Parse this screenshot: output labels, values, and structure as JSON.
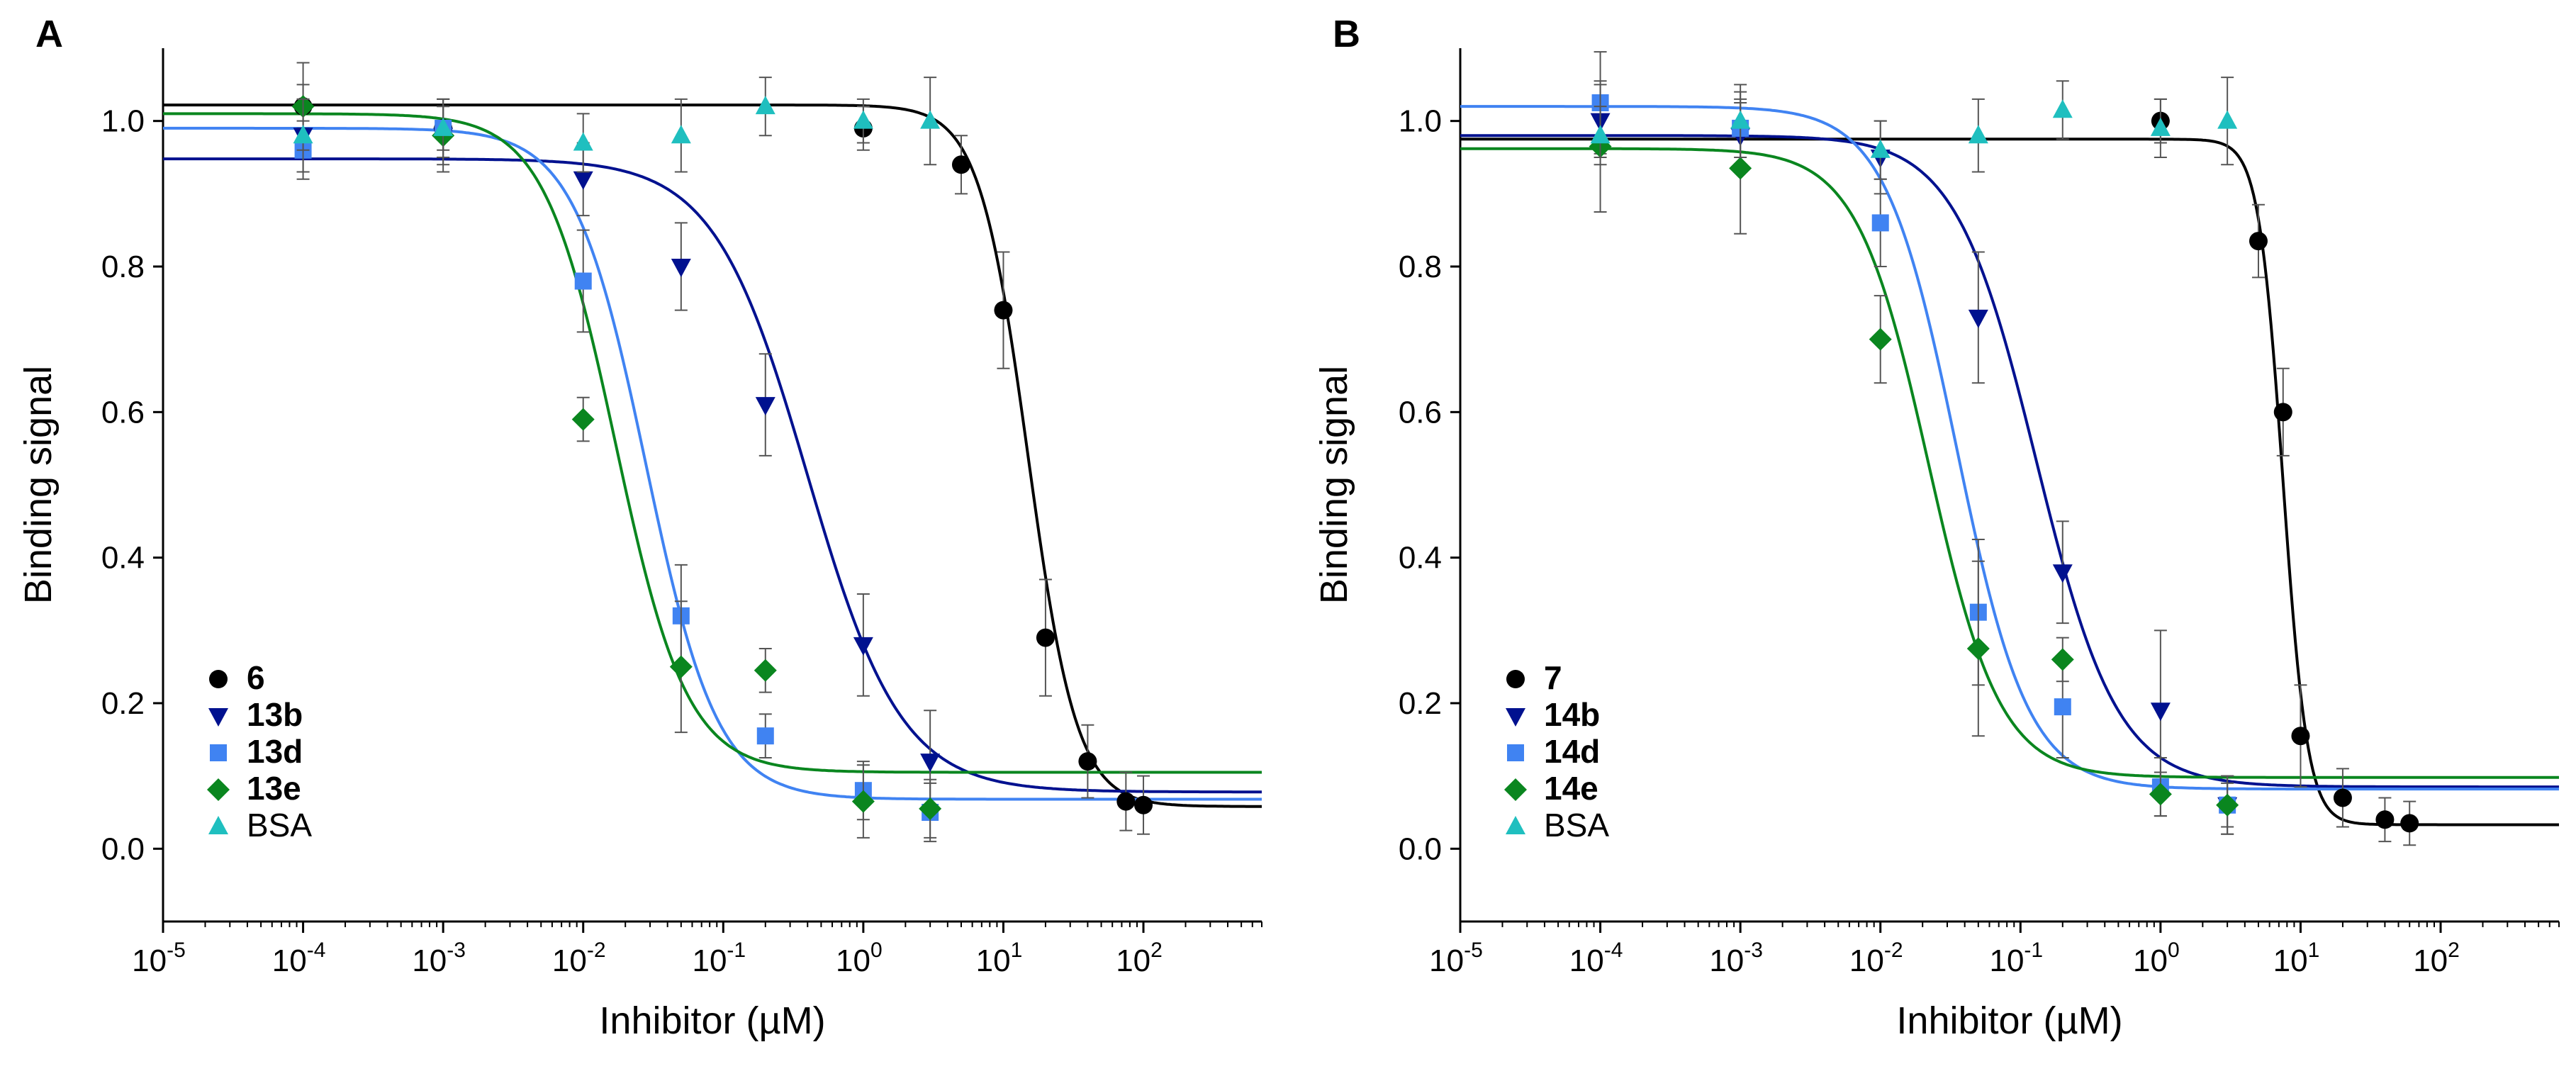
{
  "chart_data": [
    {
      "type": "scatter",
      "panel_label": "A",
      "xlabel": "Inhibitor (µM)",
      "ylabel": "Binding signal",
      "xscale": "log",
      "xlim": [
        1e-05,
        700
      ],
      "ylim": [
        -0.1,
        1.1
      ],
      "x_ticks": [
        {
          "base": "10",
          "exp": "-5",
          "value": 1e-05
        },
        {
          "base": "10",
          "exp": "-4",
          "value": 0.0001
        },
        {
          "base": "10",
          "exp": "-3",
          "value": 0.001
        },
        {
          "base": "10",
          "exp": "-2",
          "value": 0.01
        },
        {
          "base": "10",
          "exp": "-1",
          "value": 0.1
        },
        {
          "base": "10",
          "exp": "0",
          "value": 1
        },
        {
          "base": "10",
          "exp": "1",
          "value": 10
        },
        {
          "base": "10",
          "exp": "2",
          "value": 100
        }
      ],
      "y_ticks": [
        "0.0",
        "0.2",
        "0.4",
        "0.6",
        "0.8",
        "1.0"
      ],
      "grid": false,
      "legend_position": "bottom-left",
      "series": [
        {
          "name": "6",
          "bold": true,
          "marker": "circle",
          "color": "#000000",
          "fit": {
            "bottom": 0.058,
            "top": 1.022,
            "ic50": 15.0,
            "hill": 2.5
          },
          "points": [
            {
              "x": 0.0001,
              "y": 1.02,
              "err": 0.03
            },
            {
              "x": 0.001,
              "y": 0.99,
              "err": 0.03
            },
            {
              "x": 1,
              "y": 0.99,
              "err": 0.03
            },
            {
              "x": 5,
              "y": 0.94,
              "err": 0.04
            },
            {
              "x": 10,
              "y": 0.74,
              "err": 0.08
            },
            {
              "x": 20,
              "y": 0.29,
              "err": 0.08
            },
            {
              "x": 40,
              "y": 0.12,
              "err": 0.05
            },
            {
              "x": 75,
              "y": 0.065,
              "err": 0.04
            },
            {
              "x": 100,
              "y": 0.06,
              "err": 0.04
            }
          ]
        },
        {
          "name": "13b",
          "bold": true,
          "marker": "triangle-down",
          "color": "#00118f",
          "fit": {
            "bottom": 0.078,
            "top": 0.948,
            "ic50": 0.4,
            "hill": 1.3
          },
          "points": [
            {
              "x": 0.0001,
              "y": 0.98,
              "err": 0.05
            },
            {
              "x": 0.001,
              "y": 0.98,
              "err": 0.05
            },
            {
              "x": 0.01,
              "y": 0.92,
              "err": 0.05
            },
            {
              "x": 0.05,
              "y": 0.8,
              "err": 0.06
            },
            {
              "x": 0.2,
              "y": 0.61,
              "err": 0.07
            },
            {
              "x": 1,
              "y": 0.28,
              "err": 0.07
            },
            {
              "x": 3,
              "y": 0.12,
              "err": 0.07
            }
          ]
        },
        {
          "name": "13d",
          "bold": true,
          "marker": "square",
          "color": "#4083f2",
          "fit": {
            "bottom": 0.068,
            "top": 0.99,
            "ic50": 0.028,
            "hill": 1.7
          },
          "points": [
            {
              "x": 0.0001,
              "y": 0.96,
              "err": 0.04
            },
            {
              "x": 0.001,
              "y": 0.99,
              "err": 0.04
            },
            {
              "x": 0.01,
              "y": 0.78,
              "err": 0.07
            },
            {
              "x": 0.05,
              "y": 0.32,
              "err": 0.07
            },
            {
              "x": 0.2,
              "y": 0.155,
              "err": 0.03
            },
            {
              "x": 1,
              "y": 0.08,
              "err": 0.04
            },
            {
              "x": 3,
              "y": 0.05,
              "err": 0.04
            }
          ]
        },
        {
          "name": "13e",
          "bold": true,
          "marker": "diamond",
          "color": "#0a861f",
          "fit": {
            "bottom": 0.105,
            "top": 1.01,
            "ic50": 0.017,
            "hill": 1.7
          },
          "points": [
            {
              "x": 0.0001,
              "y": 1.02,
              "err": 0.06
            },
            {
              "x": 0.001,
              "y": 0.98,
              "err": 0.04
            },
            {
              "x": 0.01,
              "y": 0.59,
              "err": 0.03
            },
            {
              "x": 0.05,
              "y": 0.25,
              "err": 0.09
            },
            {
              "x": 0.2,
              "y": 0.245,
              "err": 0.03
            },
            {
              "x": 1,
              "y": 0.065,
              "err": 0.05
            },
            {
              "x": 3,
              "y": 0.055,
              "err": 0.04
            }
          ]
        },
        {
          "name": "BSA",
          "bold": false,
          "marker": "triangle-up",
          "color": "#1fbfbf",
          "fit": null,
          "points": [
            {
              "x": 0.0001,
              "y": 0.98,
              "err": 0.05
            },
            {
              "x": 0.001,
              "y": 0.99,
              "err": 0.04
            },
            {
              "x": 0.01,
              "y": 0.97,
              "err": 0.04
            },
            {
              "x": 0.05,
              "y": 0.98,
              "err": 0.05
            },
            {
              "x": 0.2,
              "y": 1.02,
              "err": 0.04
            },
            {
              "x": 1,
              "y": 1.0,
              "err": 0.03
            },
            {
              "x": 3,
              "y": 1.0,
              "err": 0.06
            }
          ]
        }
      ]
    },
    {
      "type": "scatter",
      "panel_label": "B",
      "xlabel": "Inhibitor (µM)",
      "ylabel": "Binding signal",
      "xscale": "log",
      "xlim": [
        1e-05,
        700
      ],
      "ylim": [
        -0.1,
        1.1
      ],
      "x_ticks": [
        {
          "base": "10",
          "exp": "-5",
          "value": 1e-05
        },
        {
          "base": "10",
          "exp": "-4",
          "value": 0.0001
        },
        {
          "base": "10",
          "exp": "-3",
          "value": 0.001
        },
        {
          "base": "10",
          "exp": "-2",
          "value": 0.01
        },
        {
          "base": "10",
          "exp": "-1",
          "value": 0.1
        },
        {
          "base": "10",
          "exp": "0",
          "value": 1
        },
        {
          "base": "10",
          "exp": "1",
          "value": 10
        },
        {
          "base": "10",
          "exp": "2",
          "value": 100
        }
      ],
      "y_ticks": [
        "0.0",
        "0.2",
        "0.4",
        "0.6",
        "0.8",
        "1.0"
      ],
      "grid": false,
      "legend_position": "bottom-left",
      "series": [
        {
          "name": "7",
          "bold": true,
          "marker": "circle",
          "color": "#000000",
          "fit": {
            "bottom": 0.033,
            "top": 0.975,
            "ic50": 7.5,
            "hill": 5.0
          },
          "points": [
            {
              "x": 1,
              "y": 1.0,
              "err": 0.03
            },
            {
              "x": 5,
              "y": 0.835,
              "err": 0.05
            },
            {
              "x": 7.5,
              "y": 0.6,
              "err": 0.06
            },
            {
              "x": 10,
              "y": 0.155,
              "err": 0.07
            },
            {
              "x": 20,
              "y": 0.07,
              "err": 0.04
            },
            {
              "x": 40,
              "y": 0.04,
              "err": 0.03
            },
            {
              "x": 60,
              "y": 0.035,
              "err": 0.03
            }
          ]
        },
        {
          "name": "14b",
          "bold": true,
          "marker": "triangle-down",
          "color": "#00118f",
          "fit": {
            "bottom": 0.085,
            "top": 0.98,
            "ic50": 0.13,
            "hill": 1.5
          },
          "points": [
            {
              "x": 0.0001,
              "y": 1.0,
              "err": 0.05
            },
            {
              "x": 0.001,
              "y": 0.98,
              "err": 0.05
            },
            {
              "x": 0.01,
              "y": 0.95,
              "err": 0.05
            },
            {
              "x": 0.05,
              "y": 0.73,
              "err": 0.09
            },
            {
              "x": 0.2,
              "y": 0.38,
              "err": 0.07
            },
            {
              "x": 1,
              "y": 0.19,
              "err": 0.11
            },
            {
              "x": 3,
              "y": 0.06,
              "err": 0.04
            }
          ]
        },
        {
          "name": "14d",
          "bold": true,
          "marker": "square",
          "color": "#4083f2",
          "fit": {
            "bottom": 0.082,
            "top": 1.02,
            "ic50": 0.035,
            "hill": 1.7
          },
          "points": [
            {
              "x": 0.0001,
              "y": 1.025,
              "err": 0.07
            },
            {
              "x": 0.001,
              "y": 0.99,
              "err": 0.05
            },
            {
              "x": 0.01,
              "y": 0.86,
              "err": 0.06
            },
            {
              "x": 0.05,
              "y": 0.325,
              "err": 0.1
            },
            {
              "x": 0.2,
              "y": 0.195,
              "err": 0.07
            },
            {
              "x": 1,
              "y": 0.085,
              "err": 0.04
            },
            {
              "x": 3,
              "y": 0.06,
              "err": 0.03
            }
          ]
        },
        {
          "name": "14e",
          "bold": true,
          "marker": "diamond",
          "color": "#0a861f",
          "fit": {
            "bottom": 0.098,
            "top": 0.962,
            "ic50": 0.022,
            "hill": 1.7
          },
          "points": [
            {
              "x": 0.0001,
              "y": 0.965,
              "err": 0.09
            },
            {
              "x": 0.001,
              "y": 0.935,
              "err": 0.09
            },
            {
              "x": 0.01,
              "y": 0.7,
              "err": 0.06
            },
            {
              "x": 0.05,
              "y": 0.275,
              "err": 0.12
            },
            {
              "x": 0.2,
              "y": 0.26,
              "err": 0.03
            },
            {
              "x": 1,
              "y": 0.075,
              "err": 0.03
            },
            {
              "x": 3,
              "y": 0.06,
              "err": 0.04
            }
          ]
        },
        {
          "name": "BSA",
          "bold": false,
          "marker": "triangle-up",
          "color": "#1fbfbf",
          "fit": null,
          "points": [
            {
              "x": 0.0001,
              "y": 0.98,
              "err": 0.04
            },
            {
              "x": 0.001,
              "y": 1.0,
              "err": 0.05
            },
            {
              "x": 0.01,
              "y": 0.96,
              "err": 0.04
            },
            {
              "x": 0.05,
              "y": 0.98,
              "err": 0.05
            },
            {
              "x": 0.2,
              "y": 1.015,
              "err": 0.04
            },
            {
              "x": 1,
              "y": 0.99,
              "err": 0.04
            },
            {
              "x": 3,
              "y": 1.0,
              "err": 0.06
            }
          ]
        }
      ]
    }
  ]
}
